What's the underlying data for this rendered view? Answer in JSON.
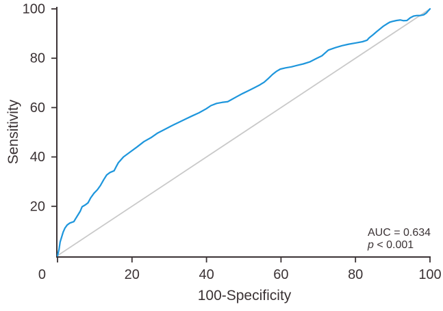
{
  "figure": {
    "background": "#ffffff",
    "axis_color": "#3a3234",
    "text_color": "#3a3234"
  },
  "chart_data": {
    "type": "line",
    "title": "",
    "xlabel": "100-Specificity",
    "ylabel": "Sensitivity",
    "xlim": [
      0,
      100
    ],
    "ylim": [
      0,
      100
    ],
    "xticks": [
      0,
      20,
      40,
      60,
      80,
      100
    ],
    "yticks": [
      20,
      40,
      60,
      80,
      100
    ],
    "origin_label": "0",
    "grid": false,
    "legend": "none",
    "annotation": {
      "auc": "AUC = 0.634",
      "p_italic": "p",
      "p_rest": " < 0.001"
    },
    "series": [
      {
        "name": "reference-diagonal",
        "color": "#c9c9c9",
        "stroke_width": 1.8,
        "points": [
          [
            0,
            0
          ],
          [
            100,
            100
          ]
        ]
      },
      {
        "name": "roc-curve",
        "color": "#1e96dc",
        "stroke_width": 2.25,
        "points": [
          [
            0,
            0
          ],
          [
            0.4,
            2.5
          ],
          [
            0.7,
            5.5
          ],
          [
            1.1,
            7.5
          ],
          [
            1.5,
            9.5
          ],
          [
            2,
            11.2
          ],
          [
            2.6,
            12.4
          ],
          [
            3.3,
            13.2
          ],
          [
            4.4,
            13.8
          ],
          [
            4.7,
            14.6
          ],
          [
            5.6,
            16.8
          ],
          [
            6.1,
            18
          ],
          [
            6.6,
            19.8
          ],
          [
            7.5,
            20.6
          ],
          [
            8.2,
            21.4
          ],
          [
            8.9,
            23.4
          ],
          [
            9.8,
            25.3
          ],
          [
            10.7,
            26.7
          ],
          [
            11.5,
            28.4
          ],
          [
            12.4,
            30.8
          ],
          [
            13.2,
            32.7
          ],
          [
            14.1,
            33.7
          ],
          [
            15.2,
            34.4
          ],
          [
            15.8,
            36.2
          ],
          [
            16.3,
            37.6
          ],
          [
            17.7,
            40
          ],
          [
            19.5,
            42
          ],
          [
            21.4,
            44.1
          ],
          [
            23.2,
            46.2
          ],
          [
            25.1,
            47.8
          ],
          [
            26.9,
            49.7
          ],
          [
            28.8,
            51.2
          ],
          [
            30.6,
            52.6
          ],
          [
            32.5,
            54
          ],
          [
            34.3,
            55.3
          ],
          [
            36.1,
            56.6
          ],
          [
            38,
            57.9
          ],
          [
            39.9,
            59.5
          ],
          [
            41.2,
            60.8
          ],
          [
            42.7,
            61.7
          ],
          [
            44.2,
            62.1
          ],
          [
            45.7,
            62.4
          ],
          [
            46.7,
            63.2
          ],
          [
            48.2,
            64.5
          ],
          [
            49.7,
            65.7
          ],
          [
            51.2,
            66.8
          ],
          [
            52.8,
            68
          ],
          [
            54.3,
            69.2
          ],
          [
            55.5,
            70.3
          ],
          [
            56.6,
            71.8
          ],
          [
            57.7,
            73.4
          ],
          [
            58.8,
            74.7
          ],
          [
            59.8,
            75.6
          ],
          [
            61.2,
            76.1
          ],
          [
            62.8,
            76.5
          ],
          [
            64.3,
            77.1
          ],
          [
            66,
            77.7
          ],
          [
            67.7,
            78.5
          ],
          [
            69.4,
            79.8
          ],
          [
            71,
            81
          ],
          [
            72.7,
            83.3
          ],
          [
            74.6,
            84.3
          ],
          [
            76.4,
            85.1
          ],
          [
            78.2,
            85.7
          ],
          [
            80.1,
            86.2
          ],
          [
            81.9,
            86.7
          ],
          [
            83.1,
            87.3
          ],
          [
            83.7,
            88.3
          ],
          [
            84.7,
            89.5
          ],
          [
            85.6,
            90.7
          ],
          [
            86.5,
            91.8
          ],
          [
            87.4,
            92.9
          ],
          [
            88.3,
            93.8
          ],
          [
            89.2,
            94.6
          ],
          [
            90.1,
            95
          ],
          [
            91,
            95.3
          ],
          [
            92,
            95.5
          ],
          [
            92.9,
            95.2
          ],
          [
            93.8,
            95.3
          ],
          [
            94.7,
            96.4
          ],
          [
            95.6,
            97.1
          ],
          [
            96.5,
            97.3
          ],
          [
            97.4,
            97.3
          ],
          [
            98.3,
            97.6
          ],
          [
            99,
            98.3
          ],
          [
            99.4,
            99
          ],
          [
            100,
            100
          ]
        ]
      }
    ]
  }
}
